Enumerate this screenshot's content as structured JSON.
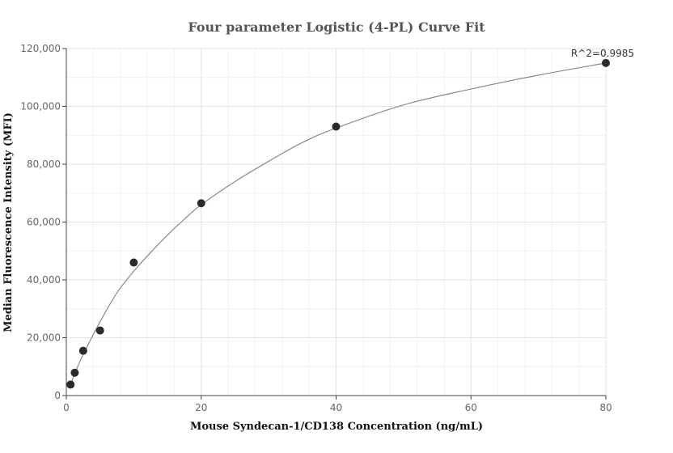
{
  "chart_data": {
    "type": "scatter",
    "title": "Four parameter Logistic (4-PL) Curve Fit",
    "xlabel": "Mouse Syndecan-1/CD138 Concentration (ng/mL)",
    "ylabel": "Median Fluorescence Intensity (MFI)",
    "xlim": [
      0,
      80
    ],
    "ylim": [
      0,
      120000
    ],
    "x_ticks": [
      0,
      20,
      40,
      60,
      80
    ],
    "x_tick_labels": [
      "0",
      "20",
      "40",
      "60",
      "80"
    ],
    "y_ticks": [
      0,
      20000,
      40000,
      60000,
      80000,
      100000,
      120000
    ],
    "y_tick_labels": [
      "0",
      "20,000",
      "40,000",
      "60,000",
      "80,000",
      "100,000",
      "120,000"
    ],
    "grid": true,
    "series": [
      {
        "points": [
          {
            "x": 0.625,
            "y": 3800
          },
          {
            "x": 1.25,
            "y": 7900
          },
          {
            "x": 2.5,
            "y": 15500
          },
          {
            "x": 5,
            "y": 22500
          },
          {
            "x": 10,
            "y": 46000
          },
          {
            "x": 20,
            "y": 66500
          },
          {
            "x": 40,
            "y": 93000
          },
          {
            "x": 80,
            "y": 115000
          }
        ]
      }
    ],
    "fit_curve": [
      {
        "x": 0.625,
        "y": 3800
      },
      {
        "x": 1.25,
        "y": 7600
      },
      {
        "x": 2.5,
        "y": 14200
      },
      {
        "x": 5,
        "y": 25500
      },
      {
        "x": 7.5,
        "y": 35500
      },
      {
        "x": 10,
        "y": 43000
      },
      {
        "x": 12.5,
        "y": 49500
      },
      {
        "x": 15,
        "y": 55500
      },
      {
        "x": 17.5,
        "y": 61000
      },
      {
        "x": 20,
        "y": 66000
      },
      {
        "x": 25,
        "y": 74000
      },
      {
        "x": 30,
        "y": 81000
      },
      {
        "x": 35,
        "y": 87500
      },
      {
        "x": 40,
        "y": 92500
      },
      {
        "x": 50,
        "y": 100500
      },
      {
        "x": 60,
        "y": 106000
      },
      {
        "x": 70,
        "y": 110800
      },
      {
        "x": 80,
        "y": 115000
      }
    ],
    "annotation": "R^2=0.9985"
  },
  "colors": {
    "point": "#2b2b2b",
    "curve": "#8a8a8a",
    "grid": "#e3e3e3",
    "axis": "#444444"
  }
}
